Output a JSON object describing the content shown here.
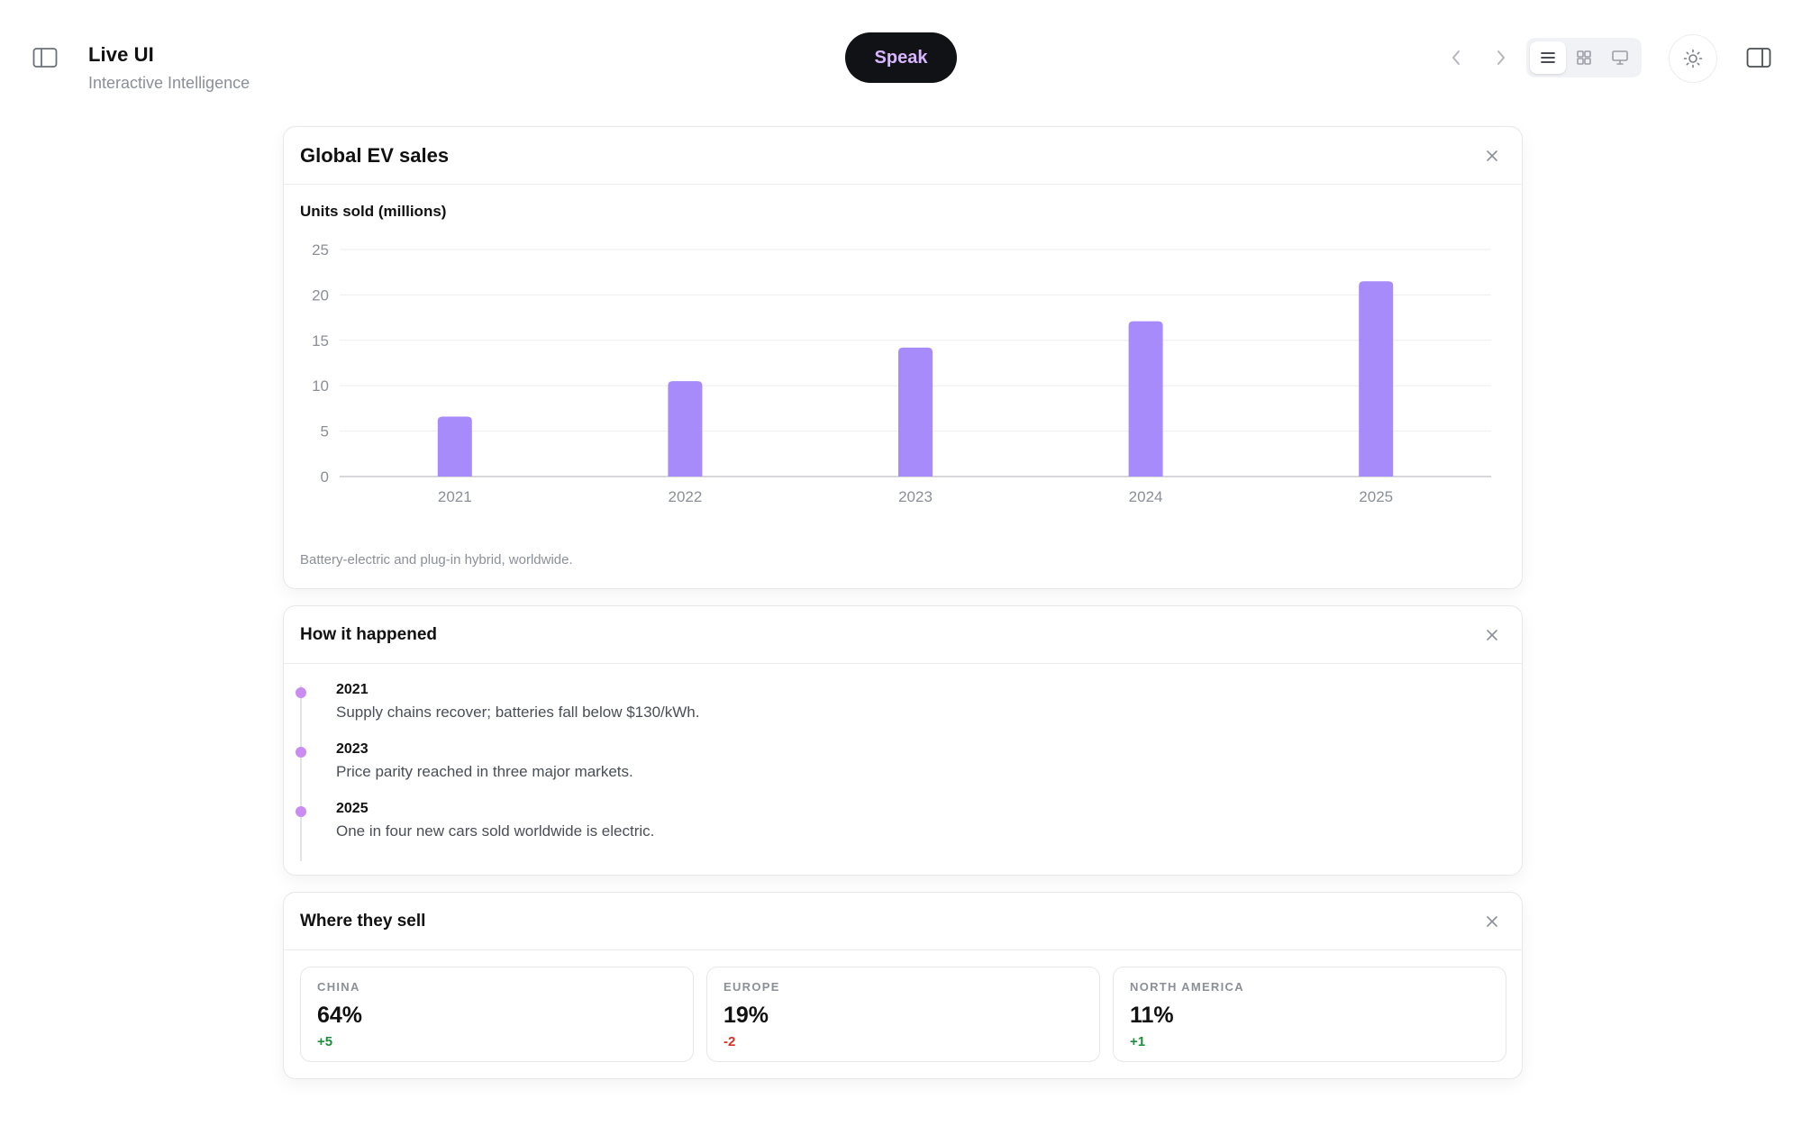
{
  "app": {
    "title": "Live UI",
    "subtitle": "Interactive Intelligence",
    "speak_label": "Speak",
    "accent": "#a78bfa",
    "speak_text_color": "#d6b6ff"
  },
  "header_icons": {
    "left_sidebar": "sidebar-left-icon",
    "prev": "chevron-left-icon",
    "next": "chevron-right-icon",
    "views": [
      "list-view-icon",
      "grid-view-icon",
      "monitor-view-icon"
    ],
    "active_view": "list",
    "theme": "sun-icon",
    "right_panel": "sidebar-right-icon"
  },
  "sales_card": {
    "title": "Global EV sales",
    "chart_heading": "Units sold (millions)",
    "footnote": "Battery-electric and plug-in hybrid, worldwide."
  },
  "chart_data": {
    "type": "bar",
    "categories": [
      "2021",
      "2022",
      "2023",
      "2024",
      "2025"
    ],
    "values": [
      6.6,
      10.5,
      14.2,
      17.1,
      21.5
    ],
    "ylim": [
      0,
      25
    ],
    "yticks": [
      "0",
      "5",
      "10",
      "15",
      "20",
      "25"
    ],
    "grid": true,
    "bar_color": "#a78bfa"
  },
  "timeline_card": {
    "title": "How it happened",
    "events": [
      {
        "year": "2021",
        "text": "Supply chains recover; batteries fall below $130/kWh."
      },
      {
        "year": "2023",
        "text": "Price parity reached in three major markets."
      },
      {
        "year": "2025",
        "text": "One in four new cars sold worldwide is electric."
      }
    ],
    "dot_color": "#c98cf0"
  },
  "regions_card": {
    "title": "Where they sell",
    "regions": [
      {
        "label": "CHINA",
        "value": "64%",
        "delta": "+5",
        "delta_color": "#1e8e3e"
      },
      {
        "label": "EUROPE",
        "value": "19%",
        "delta": "-2",
        "delta_color": "#d93025"
      },
      {
        "label": "NORTH AMERICA",
        "value": "11%",
        "delta": "+1",
        "delta_color": "#1e8e3e"
      }
    ]
  }
}
